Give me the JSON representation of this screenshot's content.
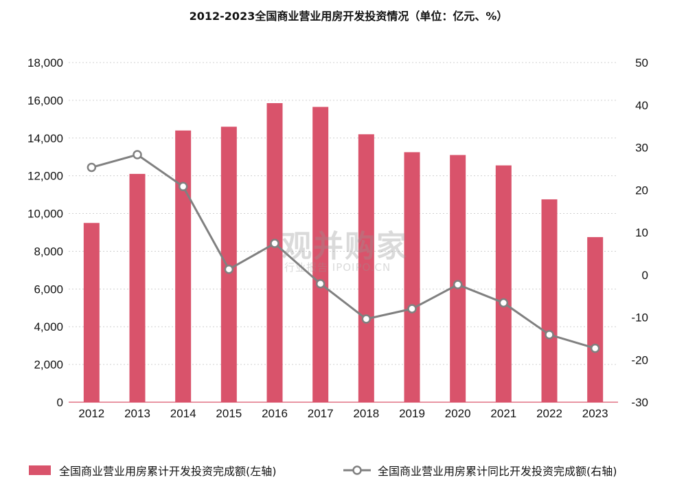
{
  "watermark": {
    "main": "观并购家",
    "sub": "行业报告 IPOIPO.CN"
  },
  "chart_data": {
    "type": "bar",
    "title": "2012-2023全国商业营业用房开发投资情况（单位：亿元、%）",
    "categories": [
      "2012",
      "2013",
      "2014",
      "2015",
      "2016",
      "2017",
      "2018",
      "2019",
      "2020",
      "2021",
      "2022",
      "2023"
    ],
    "series": [
      {
        "name": "全国商业营业用房累计开发投资完成额(左轴)",
        "type": "bar",
        "axis": "left",
        "color": "#d9536b",
        "values": [
          9500,
          12100,
          14400,
          14600,
          15850,
          15650,
          14200,
          13250,
          13100,
          12550,
          10750,
          8750
        ]
      },
      {
        "name": "全国商业营业用房累计同比开发投资完成额(右轴)",
        "type": "line",
        "axis": "right",
        "color": "#808080",
        "values": [
          25.3,
          28.3,
          20.8,
          1.3,
          7.4,
          -2.1,
          -10.4,
          -8.0,
          -2.3,
          -6.6,
          -14.1,
          -17.3
        ]
      }
    ],
    "y_left": {
      "lim": [
        0,
        18000
      ],
      "ticks": [
        "0",
        "2,000",
        "4,000",
        "6,000",
        "8,000",
        "10,000",
        "12,000",
        "14,000",
        "16,000",
        "18,000"
      ]
    },
    "y_right": {
      "lim": [
        -30,
        50
      ],
      "ticks": [
        "-30",
        "-20",
        "-10",
        "0",
        "10",
        "20",
        "30",
        "40",
        "50"
      ]
    },
    "grid": true,
    "legend_position": "bottom"
  }
}
